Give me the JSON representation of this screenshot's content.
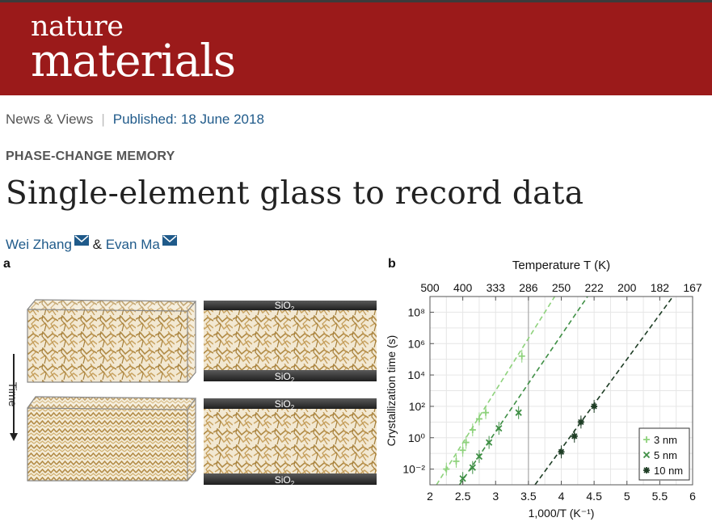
{
  "journal": {
    "name_line1": "nature",
    "name_line2": "materials",
    "brand_color": "#9b1a1a"
  },
  "meta": {
    "section": "News & Views",
    "published": "Published: 18 June 2018"
  },
  "article": {
    "kicker": "PHASE-CHANGE MEMORY",
    "title": "Single-element glass to record data",
    "author1": "Wei Zhang",
    "and": "&",
    "author2": "Evan Ma"
  },
  "figure": {
    "panel_a_label": "a",
    "panel_b_label": "b",
    "time_label": "Time",
    "sio2_label": "SiO",
    "sio2_sub": "2"
  },
  "chart_data": {
    "type": "scatter",
    "xlabel": "1,000/T (K⁻¹)",
    "ylabel": "Crystallization time (s)",
    "top_axis_label": "Temperature T (K)",
    "top_ticks": [
      "500",
      "400",
      "333",
      "286",
      "250",
      "222",
      "200",
      "182",
      "167"
    ],
    "x_ticks": [
      "2",
      "2.5",
      "3",
      "3.5",
      "4",
      "4.5",
      "5",
      "5.5",
      "6"
    ],
    "y_ticks": [
      "10⁻²",
      "10⁰",
      "10²",
      "10⁴",
      "10⁶",
      "10⁸"
    ],
    "xlim": [
      2,
      6
    ],
    "ylim_log10": [
      -3,
      9
    ],
    "yscale": "log",
    "grid": true,
    "legend_position": "bottom-right",
    "series": [
      {
        "name": "3 nm",
        "marker": "+",
        "color": "#8ed27c",
        "x": [
          2.25,
          2.4,
          2.5,
          2.55,
          2.65,
          2.75,
          2.85,
          3.4
        ],
        "log10_y": [
          -2.0,
          -1.5,
          -0.8,
          -0.3,
          0.5,
          1.2,
          1.6,
          5.2
        ],
        "fit": {
          "x": [
            2.1,
            3.9
          ],
          "log10_y": [
            -3.2,
            9.2
          ]
        }
      },
      {
        "name": "5 nm",
        "marker": "×",
        "color": "#3f8f45",
        "x": [
          2.5,
          2.65,
          2.75,
          2.9,
          3.05,
          3.35
        ],
        "log10_y": [
          -2.6,
          -1.9,
          -1.2,
          -0.3,
          0.6,
          1.6
        ],
        "fit": {
          "x": [
            2.45,
            4.4
          ],
          "log10_y": [
            -3.2,
            9.2
          ]
        }
      },
      {
        "name": "10 nm",
        "marker": "✱",
        "color": "#1e3d25",
        "x": [
          4.0,
          4.2,
          4.3,
          4.5
        ],
        "log10_y": [
          -0.9,
          0.1,
          1.0,
          2.0
        ],
        "fit": {
          "x": [
            3.6,
            5.7
          ],
          "log10_y": [
            -3.2,
            9.2
          ]
        }
      }
    ]
  }
}
